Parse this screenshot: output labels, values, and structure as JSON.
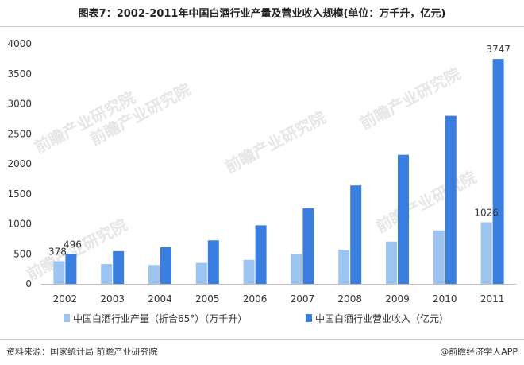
{
  "title": "图表7：2002-2011年中国白酒行业产量及营业收入规模(单位：万千升，亿元)",
  "footer": {
    "source": "资料来源：国家统计局 前瞻产业研究院",
    "brand": "@前瞻经济学人APP"
  },
  "watermark": "前瞻产业研究院",
  "chart_data": {
    "type": "bar",
    "categories": [
      "2002",
      "2003",
      "2004",
      "2005",
      "2006",
      "2007",
      "2008",
      "2009",
      "2010",
      "2011"
    ],
    "series": [
      {
        "name": "中国白酒行业产量（折合65°）（万千升）",
        "color": "#9dc3f0",
        "values": [
          378,
          330,
          315,
          350,
          400,
          495,
          570,
          705,
          890,
          1026
        ]
      },
      {
        "name": "中国白酒行业营业收入（亿元）",
        "color": "#3a7fe0",
        "values": [
          496,
          545,
          610,
          725,
          975,
          1260,
          1640,
          2150,
          2800,
          3747
        ]
      }
    ],
    "data_labels": [
      {
        "series": 0,
        "index": 0,
        "text": "378"
      },
      {
        "series": 1,
        "index": 0,
        "text": "496"
      },
      {
        "series": 0,
        "index": 9,
        "text": "1026"
      },
      {
        "series": 1,
        "index": 9,
        "text": "3747"
      }
    ],
    "yticks": [
      "0",
      "500",
      "1000",
      "1500",
      "2000",
      "2500",
      "3000",
      "3500",
      "4000"
    ],
    "ylim": [
      0,
      4000
    ],
    "grid": false,
    "legend_position": "bottom"
  }
}
